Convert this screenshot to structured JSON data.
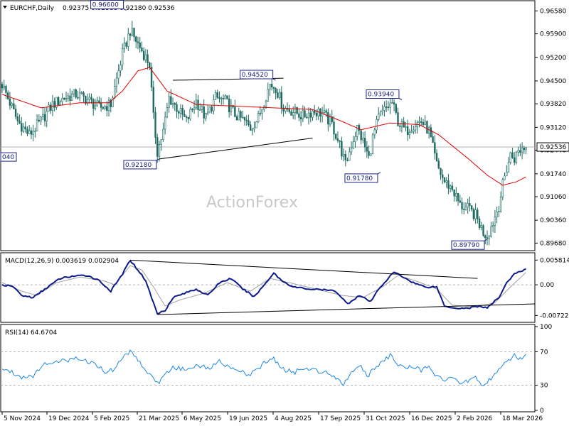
{
  "watermark": "ActionForex",
  "chart_data": [
    {
      "type": "candlestick",
      "title": "EURCHF,Daily",
      "ohlc_text": "0.92375 0.92588 0.92180 0.92536",
      "x_tick_labels": [
        "5 Nov 2024",
        "19 Dec 2024",
        "5 Feb 2025",
        "21 Mar 2025",
        "6 May 2025",
        "19 Jun 2025",
        "4 Aug 2025",
        "17 Sep 2025",
        "31 Oct 2025",
        "16 Dec 2025",
        "2 Feb 2026",
        "18 Mar 2026"
      ],
      "y_tick_labels": [
        "0.96580",
        "0.95900",
        "0.95200",
        "0.94500",
        "0.93820",
        "0.93120",
        "0.92440",
        "0.91740",
        "0.91060",
        "0.90360",
        "0.89680"
      ],
      "y_ticks": [
        0.9658,
        0.959,
        0.952,
        0.945,
        0.9382,
        0.9312,
        0.9244,
        0.9174,
        0.9106,
        0.9036,
        0.8968
      ],
      "ylim": [
        0.8952,
        0.9682
      ],
      "current_price": 0.92536,
      "current_price_label": "0.92536",
      "price_path": [
        [
          0,
          0.944
        ],
        [
          8,
          0.933
        ],
        [
          14,
          0.929
        ],
        [
          20,
          0.933
        ],
        [
          26,
          0.938
        ],
        [
          32,
          0.94
        ],
        [
          38,
          0.941
        ],
        [
          44,
          0.9395
        ],
        [
          50,
          0.937
        ],
        [
          56,
          0.938
        ],
        [
          62,
          0.953
        ],
        [
          66,
          0.96
        ],
        [
          70,
          0.956
        ],
        [
          74,
          0.952
        ],
        [
          76,
          0.95
        ],
        [
          78,
          0.934
        ],
        [
          80,
          0.924
        ],
        [
          83,
          0.93
        ],
        [
          86,
          0.94
        ],
        [
          90,
          0.937
        ],
        [
          95,
          0.933
        ],
        [
          100,
          0.939
        ],
        [
          105,
          0.934
        ],
        [
          110,
          0.94
        ],
        [
          115,
          0.939
        ],
        [
          120,
          0.935
        ],
        [
          125,
          0.933
        ],
        [
          128,
          0.931
        ],
        [
          132,
          0.934
        ],
        [
          135,
          0.939
        ],
        [
          138,
          0.944
        ],
        [
          141,
          0.943
        ],
        [
          145,
          0.937
        ],
        [
          150,
          0.936
        ],
        [
          155,
          0.9345
        ],
        [
          160,
          0.936
        ],
        [
          165,
          0.9355
        ],
        [
          170,
          0.932
        ],
        [
          174,
          0.926
        ],
        [
          177,
          0.92
        ],
        [
          180,
          0.926
        ],
        [
          183,
          0.931
        ],
        [
          186,
          0.927
        ],
        [
          189,
          0.922
        ],
        [
          191,
          0.928
        ],
        [
          194,
          0.934
        ],
        [
          198,
          0.937
        ],
        [
          201,
          0.9385
        ],
        [
          204,
          0.933
        ],
        [
          208,
          0.93
        ],
        [
          212,
          0.932
        ],
        [
          216,
          0.933
        ],
        [
          220,
          0.93
        ],
        [
          224,
          0.92
        ],
        [
          228,
          0.915
        ],
        [
          232,
          0.913
        ],
        [
          236,
          0.908
        ],
        [
          240,
          0.907
        ],
        [
          244,
          0.905
        ],
        [
          248,
          0.9
        ],
        [
          250,
          0.899
        ],
        [
          253,
          0.903
        ],
        [
          256,
          0.908
        ],
        [
          258,
          0.914
        ],
        [
          260,
          0.919
        ],
        [
          262,
          0.923
        ],
        [
          264,
          0.922
        ],
        [
          266,
          0.924
        ],
        [
          268,
          0.925
        ],
        [
          270,
          0.9254
        ]
      ],
      "ma_path": [
        [
          0,
          0.941
        ],
        [
          20,
          0.937
        ],
        [
          40,
          0.9385
        ],
        [
          55,
          0.9385
        ],
        [
          62,
          0.942
        ],
        [
          70,
          0.948
        ],
        [
          76,
          0.949
        ],
        [
          85,
          0.942
        ],
        [
          100,
          0.938
        ],
        [
          120,
          0.9375
        ],
        [
          140,
          0.937
        ],
        [
          160,
          0.9365
        ],
        [
          175,
          0.933
        ],
        [
          185,
          0.9305
        ],
        [
          200,
          0.9325
        ],
        [
          215,
          0.932
        ],
        [
          225,
          0.929
        ],
        [
          240,
          0.922
        ],
        [
          250,
          0.917
        ],
        [
          258,
          0.914
        ],
        [
          265,
          0.915
        ],
        [
          270,
          0.9165
        ]
      ],
      "swing_labels": [
        {
          "bar": 64,
          "price": 0.966,
          "text": "0.96600",
          "pos": "above"
        },
        {
          "bar": 81,
          "price": 0.9218,
          "text": "0.92180",
          "pos": "below"
        },
        {
          "bar": 141,
          "price": 0.9452,
          "text": "0.94520",
          "pos": "above"
        },
        {
          "bar": 195,
          "price": 0.9178,
          "text": "0.91780",
          "pos": "below"
        },
        {
          "bar": 206,
          "price": 0.9394,
          "text": "0.93940",
          "pos": "above"
        },
        {
          "bar": 250,
          "price": 0.8979,
          "text": "0.89790",
          "pos": "below"
        },
        {
          "bar": 0,
          "price": 0.9224,
          "text": "040",
          "pos": "edge"
        }
      ],
      "trendlines": [
        {
          "from": [
            81,
            0.9218
          ],
          "to": [
            160,
            0.928
          ]
        },
        {
          "from": [
            88,
            0.9452
          ],
          "to": [
            145,
            0.9458
          ]
        }
      ]
    },
    {
      "type": "line",
      "title": "MACD(12,26,9) 0.003619 0.002904",
      "y_tick_labels": [
        "0.005814",
        "0.00",
        "-0.007222"
      ],
      "y_ticks": [
        0.005814,
        0.0,
        -0.007222
      ],
      "ylim": [
        -0.0085,
        0.0072
      ],
      "macd_path": [
        [
          0,
          0.0
        ],
        [
          6,
          -0.0005
        ],
        [
          10,
          -0.0025
        ],
        [
          16,
          -0.003
        ],
        [
          22,
          -0.001
        ],
        [
          30,
          0.0015
        ],
        [
          36,
          0.002
        ],
        [
          44,
          0.0022
        ],
        [
          50,
          0.001
        ],
        [
          56,
          -0.0015
        ],
        [
          62,
          0.0025
        ],
        [
          66,
          0.0058
        ],
        [
          70,
          0.0035
        ],
        [
          74,
          0.001
        ],
        [
          77,
          -0.003
        ],
        [
          80,
          -0.0068
        ],
        [
          84,
          -0.006
        ],
        [
          88,
          -0.003
        ],
        [
          94,
          -0.002
        ],
        [
          100,
          -0.001
        ],
        [
          106,
          -0.0025
        ],
        [
          112,
          0.0005
        ],
        [
          118,
          0.0015
        ],
        [
          124,
          -0.001
        ],
        [
          130,
          -0.0028
        ],
        [
          136,
          0.0005
        ],
        [
          140,
          0.0028
        ],
        [
          144,
          0.001
        ],
        [
          150,
          -0.0005
        ],
        [
          158,
          -0.001
        ],
        [
          166,
          -0.0012
        ],
        [
          172,
          -0.0015
        ],
        [
          178,
          -0.0045
        ],
        [
          184,
          -0.0025
        ],
        [
          190,
          -0.004
        ],
        [
          194,
          -0.001
        ],
        [
          198,
          0.001
        ],
        [
          202,
          0.003
        ],
        [
          206,
          0.002
        ],
        [
          212,
          0.0005
        ],
        [
          218,
          -0.0005
        ],
        [
          224,
          -0.0005
        ],
        [
          228,
          -0.005
        ],
        [
          234,
          -0.0055
        ],
        [
          240,
          -0.0055
        ],
        [
          246,
          -0.005
        ],
        [
          250,
          -0.0055
        ],
        [
          256,
          -0.003
        ],
        [
          260,
          0.0005
        ],
        [
          264,
          0.0025
        ],
        [
          268,
          0.0033
        ],
        [
          270,
          0.0036
        ]
      ],
      "signal_path": [
        [
          0,
          0.0005
        ],
        [
          10,
          -0.0015
        ],
        [
          18,
          -0.0025
        ],
        [
          28,
          0.0005
        ],
        [
          40,
          0.0018
        ],
        [
          52,
          0.001
        ],
        [
          58,
          0.0
        ],
        [
          66,
          0.0045
        ],
        [
          72,
          0.0035
        ],
        [
          78,
          -0.0005
        ],
        [
          84,
          -0.005
        ],
        [
          92,
          -0.0035
        ],
        [
          104,
          -0.002
        ],
        [
          116,
          0.0005
        ],
        [
          128,
          -0.0015
        ],
        [
          138,
          0.0015
        ],
        [
          148,
          0.0005
        ],
        [
          160,
          -0.0008
        ],
        [
          175,
          -0.0025
        ],
        [
          186,
          -0.003
        ],
        [
          196,
          -0.0005
        ],
        [
          204,
          0.0022
        ],
        [
          214,
          0.0008
        ],
        [
          224,
          -0.001
        ],
        [
          232,
          -0.0048
        ],
        [
          244,
          -0.0052
        ],
        [
          254,
          -0.0042
        ],
        [
          262,
          -0.0005
        ],
        [
          270,
          0.0029
        ]
      ],
      "trendlines": [
        {
          "from": [
            66,
            0.0058
          ],
          "to": [
            245,
            0.0015
          ]
        },
        {
          "from": [
            80,
            -0.007
          ],
          "to": [
            275,
            -0.0045
          ]
        }
      ]
    },
    {
      "type": "line",
      "title": "RSI(14) 64.6704",
      "y_tick_labels": [
        "100",
        "70",
        "30",
        "0"
      ],
      "y_ticks": [
        100,
        70,
        30,
        0
      ],
      "levels": [
        70,
        30
      ],
      "ylim": [
        0,
        100
      ],
      "rsi_path": [
        [
          0,
          50
        ],
        [
          6,
          45
        ],
        [
          10,
          40
        ],
        [
          16,
          42
        ],
        [
          22,
          55
        ],
        [
          28,
          60
        ],
        [
          34,
          58
        ],
        [
          38,
          65
        ],
        [
          42,
          60
        ],
        [
          48,
          55
        ],
        [
          54,
          45
        ],
        [
          58,
          50
        ],
        [
          62,
          62
        ],
        [
          66,
          72
        ],
        [
          70,
          60
        ],
        [
          74,
          48
        ],
        [
          78,
          38
        ],
        [
          80,
          32
        ],
        [
          84,
          42
        ],
        [
          88,
          52
        ],
        [
          94,
          48
        ],
        [
          100,
          55
        ],
        [
          106,
          50
        ],
        [
          112,
          58
        ],
        [
          118,
          52
        ],
        [
          124,
          45
        ],
        [
          128,
          42
        ],
        [
          132,
          50
        ],
        [
          136,
          58
        ],
        [
          140,
          62
        ],
        [
          144,
          50
        ],
        [
          150,
          45
        ],
        [
          156,
          50
        ],
        [
          162,
          48
        ],
        [
          168,
          45
        ],
        [
          172,
          40
        ],
        [
          176,
          32
        ],
        [
          180,
          45
        ],
        [
          184,
          55
        ],
        [
          188,
          40
        ],
        [
          192,
          50
        ],
        [
          196,
          60
        ],
        [
          200,
          65
        ],
        [
          204,
          55
        ],
        [
          208,
          50
        ],
        [
          212,
          52
        ],
        [
          216,
          48
        ],
        [
          220,
          55
        ],
        [
          224,
          40
        ],
        [
          228,
          35
        ],
        [
          232,
          38
        ],
        [
          236,
          32
        ],
        [
          240,
          35
        ],
        [
          244,
          40
        ],
        [
          248,
          30
        ],
        [
          252,
          38
        ],
        [
          256,
          48
        ],
        [
          260,
          58
        ],
        [
          264,
          65
        ],
        [
          268,
          62
        ],
        [
          270,
          65
        ]
      ]
    }
  ]
}
